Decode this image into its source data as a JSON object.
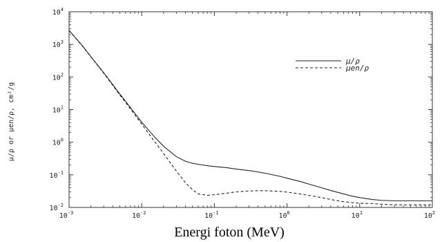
{
  "chart_data": {
    "type": "line",
    "xlabel": "Energi foton (MeV)",
    "ylabel": "μ/ρ or μen/ρ, cm²/g",
    "x_scale": "log",
    "y_scale": "log",
    "xlim": [
      0.001,
      100
    ],
    "ylim": [
      0.01,
      10000
    ],
    "x_ticks": [
      {
        "mantissa": "10",
        "exp": "-3",
        "value": 0.001
      },
      {
        "mantissa": "10",
        "exp": "-2",
        "value": 0.01
      },
      {
        "mantissa": "10",
        "exp": "-1",
        "value": 0.1
      },
      {
        "mantissa": "10",
        "exp": "0",
        "value": 1
      },
      {
        "mantissa": "10",
        "exp": "1",
        "value": 10
      },
      {
        "mantissa": "10",
        "exp": "2",
        "value": 100
      }
    ],
    "y_ticks": [
      {
        "mantissa": "10",
        "exp": "-2",
        "value": 0.01
      },
      {
        "mantissa": "10",
        "exp": "-1",
        "value": 0.1
      },
      {
        "mantissa": "10",
        "exp": "0",
        "value": 1
      },
      {
        "mantissa": "10",
        "exp": "1",
        "value": 10
      },
      {
        "mantissa": "10",
        "exp": "2",
        "value": 100
      },
      {
        "mantissa": "10",
        "exp": "3",
        "value": 1000
      },
      {
        "mantissa": "10",
        "exp": "4",
        "value": 10000
      }
    ],
    "legend_position": "top-right",
    "grid": false,
    "series": [
      {
        "name": "μ/ρ",
        "style": "solid",
        "x": [
          0.001,
          0.0015,
          0.002,
          0.003,
          0.004,
          0.005,
          0.006,
          0.008,
          0.01,
          0.015,
          0.02,
          0.03,
          0.04,
          0.05,
          0.06,
          0.08,
          0.1,
          0.15,
          0.2,
          0.3,
          0.4,
          0.5,
          0.6,
          0.8,
          1,
          1.5,
          2,
          3,
          4,
          5,
          6,
          8,
          10,
          15,
          20,
          30,
          50,
          100
        ],
        "y": [
          2700,
          950,
          420,
          135,
          58,
          30,
          18,
          7.8,
          4.1,
          1.45,
          0.75,
          0.36,
          0.26,
          0.225,
          0.21,
          0.19,
          0.18,
          0.165,
          0.15,
          0.135,
          0.122,
          0.112,
          0.103,
          0.09,
          0.079,
          0.063,
          0.052,
          0.04,
          0.033,
          0.029,
          0.026,
          0.022,
          0.02,
          0.0175,
          0.0165,
          0.016,
          0.016,
          0.016
        ]
      },
      {
        "name": "μen/ρ",
        "style": "dashed",
        "x": [
          0.001,
          0.0015,
          0.002,
          0.003,
          0.004,
          0.005,
          0.006,
          0.008,
          0.01,
          0.015,
          0.02,
          0.03,
          0.04,
          0.05,
          0.06,
          0.08,
          0.1,
          0.15,
          0.2,
          0.3,
          0.4,
          0.5,
          0.6,
          0.8,
          1,
          1.5,
          2,
          3,
          4,
          5,
          6,
          8,
          10,
          15,
          20,
          30,
          50,
          100
        ],
        "y": [
          2650,
          930,
          410,
          130,
          55,
          28,
          16.5,
          7,
          3.6,
          1.05,
          0.45,
          0.13,
          0.057,
          0.035,
          0.026,
          0.0235,
          0.0245,
          0.0275,
          0.03,
          0.032,
          0.0325,
          0.0325,
          0.032,
          0.031,
          0.0295,
          0.026,
          0.0235,
          0.02,
          0.0175,
          0.016,
          0.015,
          0.014,
          0.0135,
          0.013,
          0.0125,
          0.012,
          0.012,
          0.012
        ]
      }
    ]
  }
}
